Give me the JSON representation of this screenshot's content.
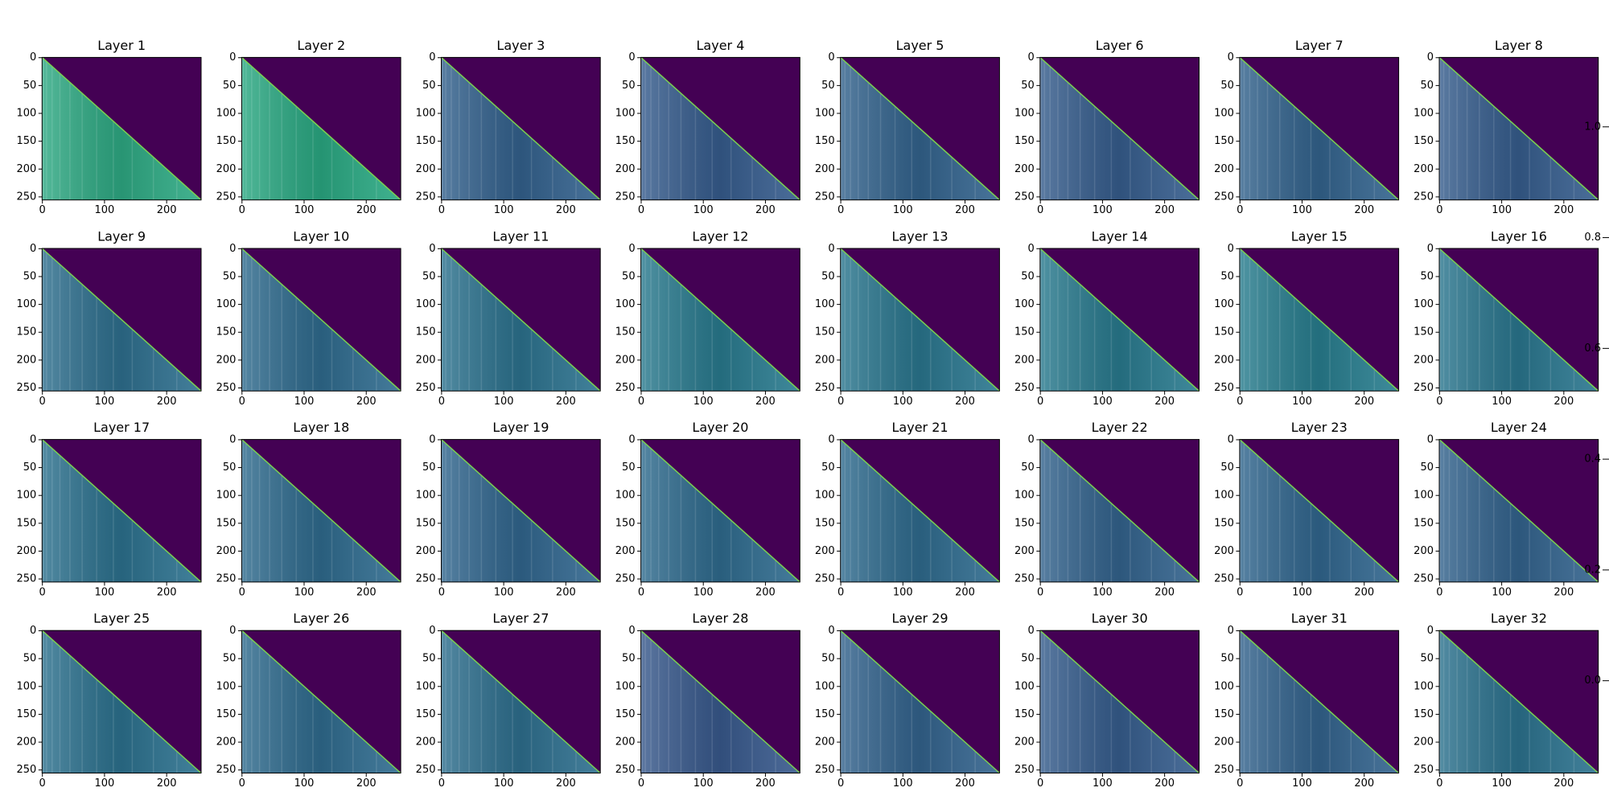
{
  "chart_data": [
    {
      "type": "heatmap",
      "title": "Layer 1",
      "color": "#2ea983",
      "xlim": [
        -0.5,
        255.5
      ],
      "ylim": [
        255.5,
        -0.5
      ],
      "xticks": [
        0,
        100,
        200
      ],
      "yticks": [
        0,
        50,
        100,
        150,
        200,
        250
      ]
    },
    {
      "type": "heatmap",
      "title": "Layer 2",
      "color": "#2aa882",
      "xlim": [
        -0.5,
        255.5
      ],
      "ylim": [
        255.5,
        -0.5
      ],
      "xticks": [
        0,
        100,
        200
      ],
      "yticks": [
        0,
        50,
        100,
        150,
        200,
        250
      ]
    },
    {
      "type": "heatmap",
      "title": "Layer 3",
      "color": "#33618d",
      "xlim": [
        -0.5,
        255.5
      ],
      "ylim": [
        255.5,
        -0.5
      ],
      "xticks": [
        0,
        100,
        200
      ],
      "yticks": [
        0,
        50,
        100,
        150,
        200,
        250
      ]
    },
    {
      "type": "heatmap",
      "title": "Layer 4",
      "color": "#365c8d",
      "xlim": [
        -0.5,
        255.5
      ],
      "ylim": [
        255.5,
        -0.5
      ],
      "xticks": [
        0,
        100,
        200
      ],
      "yticks": [
        0,
        50,
        100,
        150,
        200,
        250
      ]
    },
    {
      "type": "heatmap",
      "title": "Layer 5",
      "color": "#33638d",
      "xlim": [
        -0.5,
        255.5
      ],
      "ylim": [
        255.5,
        -0.5
      ],
      "xticks": [
        0,
        100,
        200
      ],
      "yticks": [
        0,
        50,
        100,
        150,
        200,
        250
      ]
    },
    {
      "type": "heatmap",
      "title": "Layer 6",
      "color": "#365d8d",
      "xlim": [
        -0.5,
        255.5
      ],
      "ylim": [
        255.5,
        -0.5
      ],
      "xticks": [
        0,
        100,
        200
      ],
      "yticks": [
        0,
        50,
        100,
        150,
        200,
        250
      ]
    },
    {
      "type": "heatmap",
      "title": "Layer 7",
      "color": "#33638d",
      "xlim": [
        -0.5,
        255.5
      ],
      "ylim": [
        255.5,
        -0.5
      ],
      "xticks": [
        0,
        100,
        200
      ],
      "yticks": [
        0,
        50,
        100,
        150,
        200,
        250
      ]
    },
    {
      "type": "heatmap",
      "title": "Layer 8",
      "color": "#365d8d",
      "xlim": [
        -0.5,
        255.5
      ],
      "ylim": [
        255.5,
        -0.5
      ],
      "xticks": [
        0,
        100,
        200
      ],
      "yticks": [
        0,
        50,
        100,
        150,
        200,
        250
      ]
    },
    {
      "type": "heatmap",
      "title": "Layer 9",
      "color": "#2e6f8e",
      "xlim": [
        -0.5,
        255.5
      ],
      "ylim": [
        255.5,
        -0.5
      ],
      "xticks": [
        0,
        100,
        200
      ],
      "yticks": [
        0,
        50,
        100,
        150,
        200,
        250
      ]
    },
    {
      "type": "heatmap",
      "title": "Layer 10",
      "color": "#2f6b8e",
      "xlim": [
        -0.5,
        255.5
      ],
      "ylim": [
        255.5,
        -0.5
      ],
      "xticks": [
        0,
        100,
        200
      ],
      "yticks": [
        0,
        50,
        100,
        150,
        200,
        250
      ]
    },
    {
      "type": "heatmap",
      "title": "Layer 11",
      "color": "#2c728e",
      "xlim": [
        -0.5,
        255.5
      ],
      "ylim": [
        255.5,
        -0.5
      ],
      "xticks": [
        0,
        100,
        200
      ],
      "yticks": [
        0,
        50,
        100,
        150,
        200,
        250
      ]
    },
    {
      "type": "heatmap",
      "title": "Layer 12",
      "color": "#297a8e",
      "xlim": [
        -0.5,
        255.5
      ],
      "ylim": [
        255.5,
        -0.5
      ],
      "xticks": [
        0,
        100,
        200
      ],
      "yticks": [
        0,
        50,
        100,
        150,
        200,
        250
      ]
    },
    {
      "type": "heatmap",
      "title": "Layer 13",
      "color": "#2a768e",
      "xlim": [
        -0.5,
        255.5
      ],
      "ylim": [
        255.5,
        -0.5
      ],
      "xticks": [
        0,
        100,
        200
      ],
      "yticks": [
        0,
        50,
        100,
        150,
        200,
        250
      ]
    },
    {
      "type": "heatmap",
      "title": "Layer 14",
      "color": "#297a8e",
      "xlim": [
        -0.5,
        255.5
      ],
      "ylim": [
        255.5,
        -0.5
      ],
      "xticks": [
        0,
        100,
        200
      ],
      "yticks": [
        0,
        50,
        100,
        150,
        200,
        250
      ]
    },
    {
      "type": "heatmap",
      "title": "Layer 15",
      "color": "#287d8e",
      "xlim": [
        -0.5,
        255.5
      ],
      "ylim": [
        255.5,
        -0.5
      ],
      "xticks": [
        0,
        100,
        200
      ],
      "yticks": [
        0,
        50,
        100,
        150,
        200,
        250
      ]
    },
    {
      "type": "heatmap",
      "title": "Layer 16",
      "color": "#2a768e",
      "xlim": [
        -0.5,
        255.5
      ],
      "ylim": [
        255.5,
        -0.5
      ],
      "xticks": [
        0,
        100,
        200
      ],
      "yticks": [
        0,
        50,
        100,
        150,
        200,
        250
      ]
    },
    {
      "type": "heatmap",
      "title": "Layer 17",
      "color": "#2c718e",
      "xlim": [
        -0.5,
        255.5
      ],
      "ylim": [
        255.5,
        -0.5
      ],
      "xticks": [
        0,
        100,
        200
      ],
      "yticks": [
        0,
        50,
        100,
        150,
        200,
        250
      ]
    },
    {
      "type": "heatmap",
      "title": "Layer 18",
      "color": "#2f6b8e",
      "xlim": [
        -0.5,
        255.5
      ],
      "ylim": [
        255.5,
        -0.5
      ],
      "xticks": [
        0,
        100,
        200
      ],
      "yticks": [
        0,
        50,
        100,
        150,
        200,
        250
      ]
    },
    {
      "type": "heatmap",
      "title": "Layer 19",
      "color": "#31668e",
      "xlim": [
        -0.5,
        255.5
      ],
      "ylim": [
        255.5,
        -0.5
      ],
      "xticks": [
        0,
        100,
        200
      ],
      "yticks": [
        0,
        50,
        100,
        150,
        200,
        250
      ]
    },
    {
      "type": "heatmap",
      "title": "Layer 20",
      "color": "#2f6b8e",
      "xlim": [
        -0.5,
        255.5
      ],
      "ylim": [
        255.5,
        -0.5
      ],
      "xticks": [
        0,
        100,
        200
      ],
      "yticks": [
        0,
        50,
        100,
        150,
        200,
        250
      ]
    },
    {
      "type": "heatmap",
      "title": "Layer 21",
      "color": "#2f6b8e",
      "xlim": [
        -0.5,
        255.5
      ],
      "ylim": [
        255.5,
        -0.5
      ],
      "xticks": [
        0,
        100,
        200
      ],
      "yticks": [
        0,
        50,
        100,
        150,
        200,
        250
      ]
    },
    {
      "type": "heatmap",
      "title": "Layer 22",
      "color": "#33638d",
      "xlim": [
        -0.5,
        255.5
      ],
      "ylim": [
        255.5,
        -0.5
      ],
      "xticks": [
        0,
        100,
        200
      ],
      "yticks": [
        0,
        50,
        100,
        150,
        200,
        250
      ]
    },
    {
      "type": "heatmap",
      "title": "Layer 23",
      "color": "#31668e",
      "xlim": [
        -0.5,
        255.5
      ],
      "ylim": [
        255.5,
        -0.5
      ],
      "xticks": [
        0,
        100,
        200
      ],
      "yticks": [
        0,
        50,
        100,
        150,
        200,
        250
      ]
    },
    {
      "type": "heatmap",
      "title": "Layer 24",
      "color": "#33638d",
      "xlim": [
        -0.5,
        255.5
      ],
      "ylim": [
        255.5,
        -0.5
      ],
      "xticks": [
        0,
        100,
        200
      ],
      "yticks": [
        0,
        50,
        100,
        150,
        200,
        250
      ]
    },
    {
      "type": "heatmap",
      "title": "Layer 25",
      "color": "#2c718e",
      "xlim": [
        -0.5,
        255.5
      ],
      "ylim": [
        255.5,
        -0.5
      ],
      "xticks": [
        0,
        100,
        200
      ],
      "yticks": [
        0,
        50,
        100,
        150,
        200,
        250
      ]
    },
    {
      "type": "heatmap",
      "title": "Layer 26",
      "color": "#2f6b8e",
      "xlim": [
        -0.5,
        255.5
      ],
      "ylim": [
        255.5,
        -0.5
      ],
      "xticks": [
        0,
        100,
        200
      ],
      "yticks": [
        0,
        50,
        100,
        150,
        200,
        250
      ]
    },
    {
      "type": "heatmap",
      "title": "Layer 27",
      "color": "#2e6f8e",
      "xlim": [
        -0.5,
        255.5
      ],
      "ylim": [
        255.5,
        -0.5
      ],
      "xticks": [
        0,
        100,
        200
      ],
      "yticks": [
        0,
        50,
        100,
        150,
        200,
        250
      ]
    },
    {
      "type": "heatmap",
      "title": "Layer 28",
      "color": "#38598c",
      "xlim": [
        -0.5,
        255.5
      ],
      "ylim": [
        255.5,
        -0.5
      ],
      "xticks": [
        0,
        100,
        200
      ],
      "yticks": [
        0,
        50,
        100,
        150,
        200,
        250
      ]
    },
    {
      "type": "heatmap",
      "title": "Layer 29",
      "color": "#33638d",
      "xlim": [
        -0.5,
        255.5
      ],
      "ylim": [
        255.5,
        -0.5
      ],
      "xticks": [
        0,
        100,
        200
      ],
      "yticks": [
        0,
        50,
        100,
        150,
        200,
        250
      ]
    },
    {
      "type": "heatmap",
      "title": "Layer 30",
      "color": "#365d8d",
      "xlim": [
        -0.5,
        255.5
      ],
      "ylim": [
        255.5,
        -0.5
      ],
      "xticks": [
        0,
        100,
        200
      ],
      "yticks": [
        0,
        50,
        100,
        150,
        200,
        250
      ]
    },
    {
      "type": "heatmap",
      "title": "Layer 31",
      "color": "#33638d",
      "xlim": [
        -0.5,
        255.5
      ],
      "ylim": [
        255.5,
        -0.5
      ],
      "xticks": [
        0,
        100,
        200
      ],
      "yticks": [
        0,
        50,
        100,
        150,
        200,
        250
      ]
    },
    {
      "type": "heatmap",
      "title": "Layer 32",
      "color": "#2c728e",
      "xlim": [
        -0.5,
        255.5
      ],
      "ylim": [
        255.5,
        -0.5
      ],
      "xticks": [
        0,
        100,
        200
      ],
      "yticks": [
        0,
        50,
        100,
        150,
        200,
        250
      ]
    },
    {
      "type": "colorbar",
      "ylim": [
        -0.15,
        1.2
      ],
      "yticks": [
        {
          "value": 0,
          "label": "0.0"
        },
        {
          "value": 0.2,
          "label": "0.2"
        },
        {
          "value": 0.4,
          "label": "0.4"
        },
        {
          "value": 0.6,
          "label": "0.6"
        },
        {
          "value": 0.8,
          "label": "0.8"
        },
        {
          "value": 1,
          "label": "1.0"
        }
      ]
    }
  ]
}
